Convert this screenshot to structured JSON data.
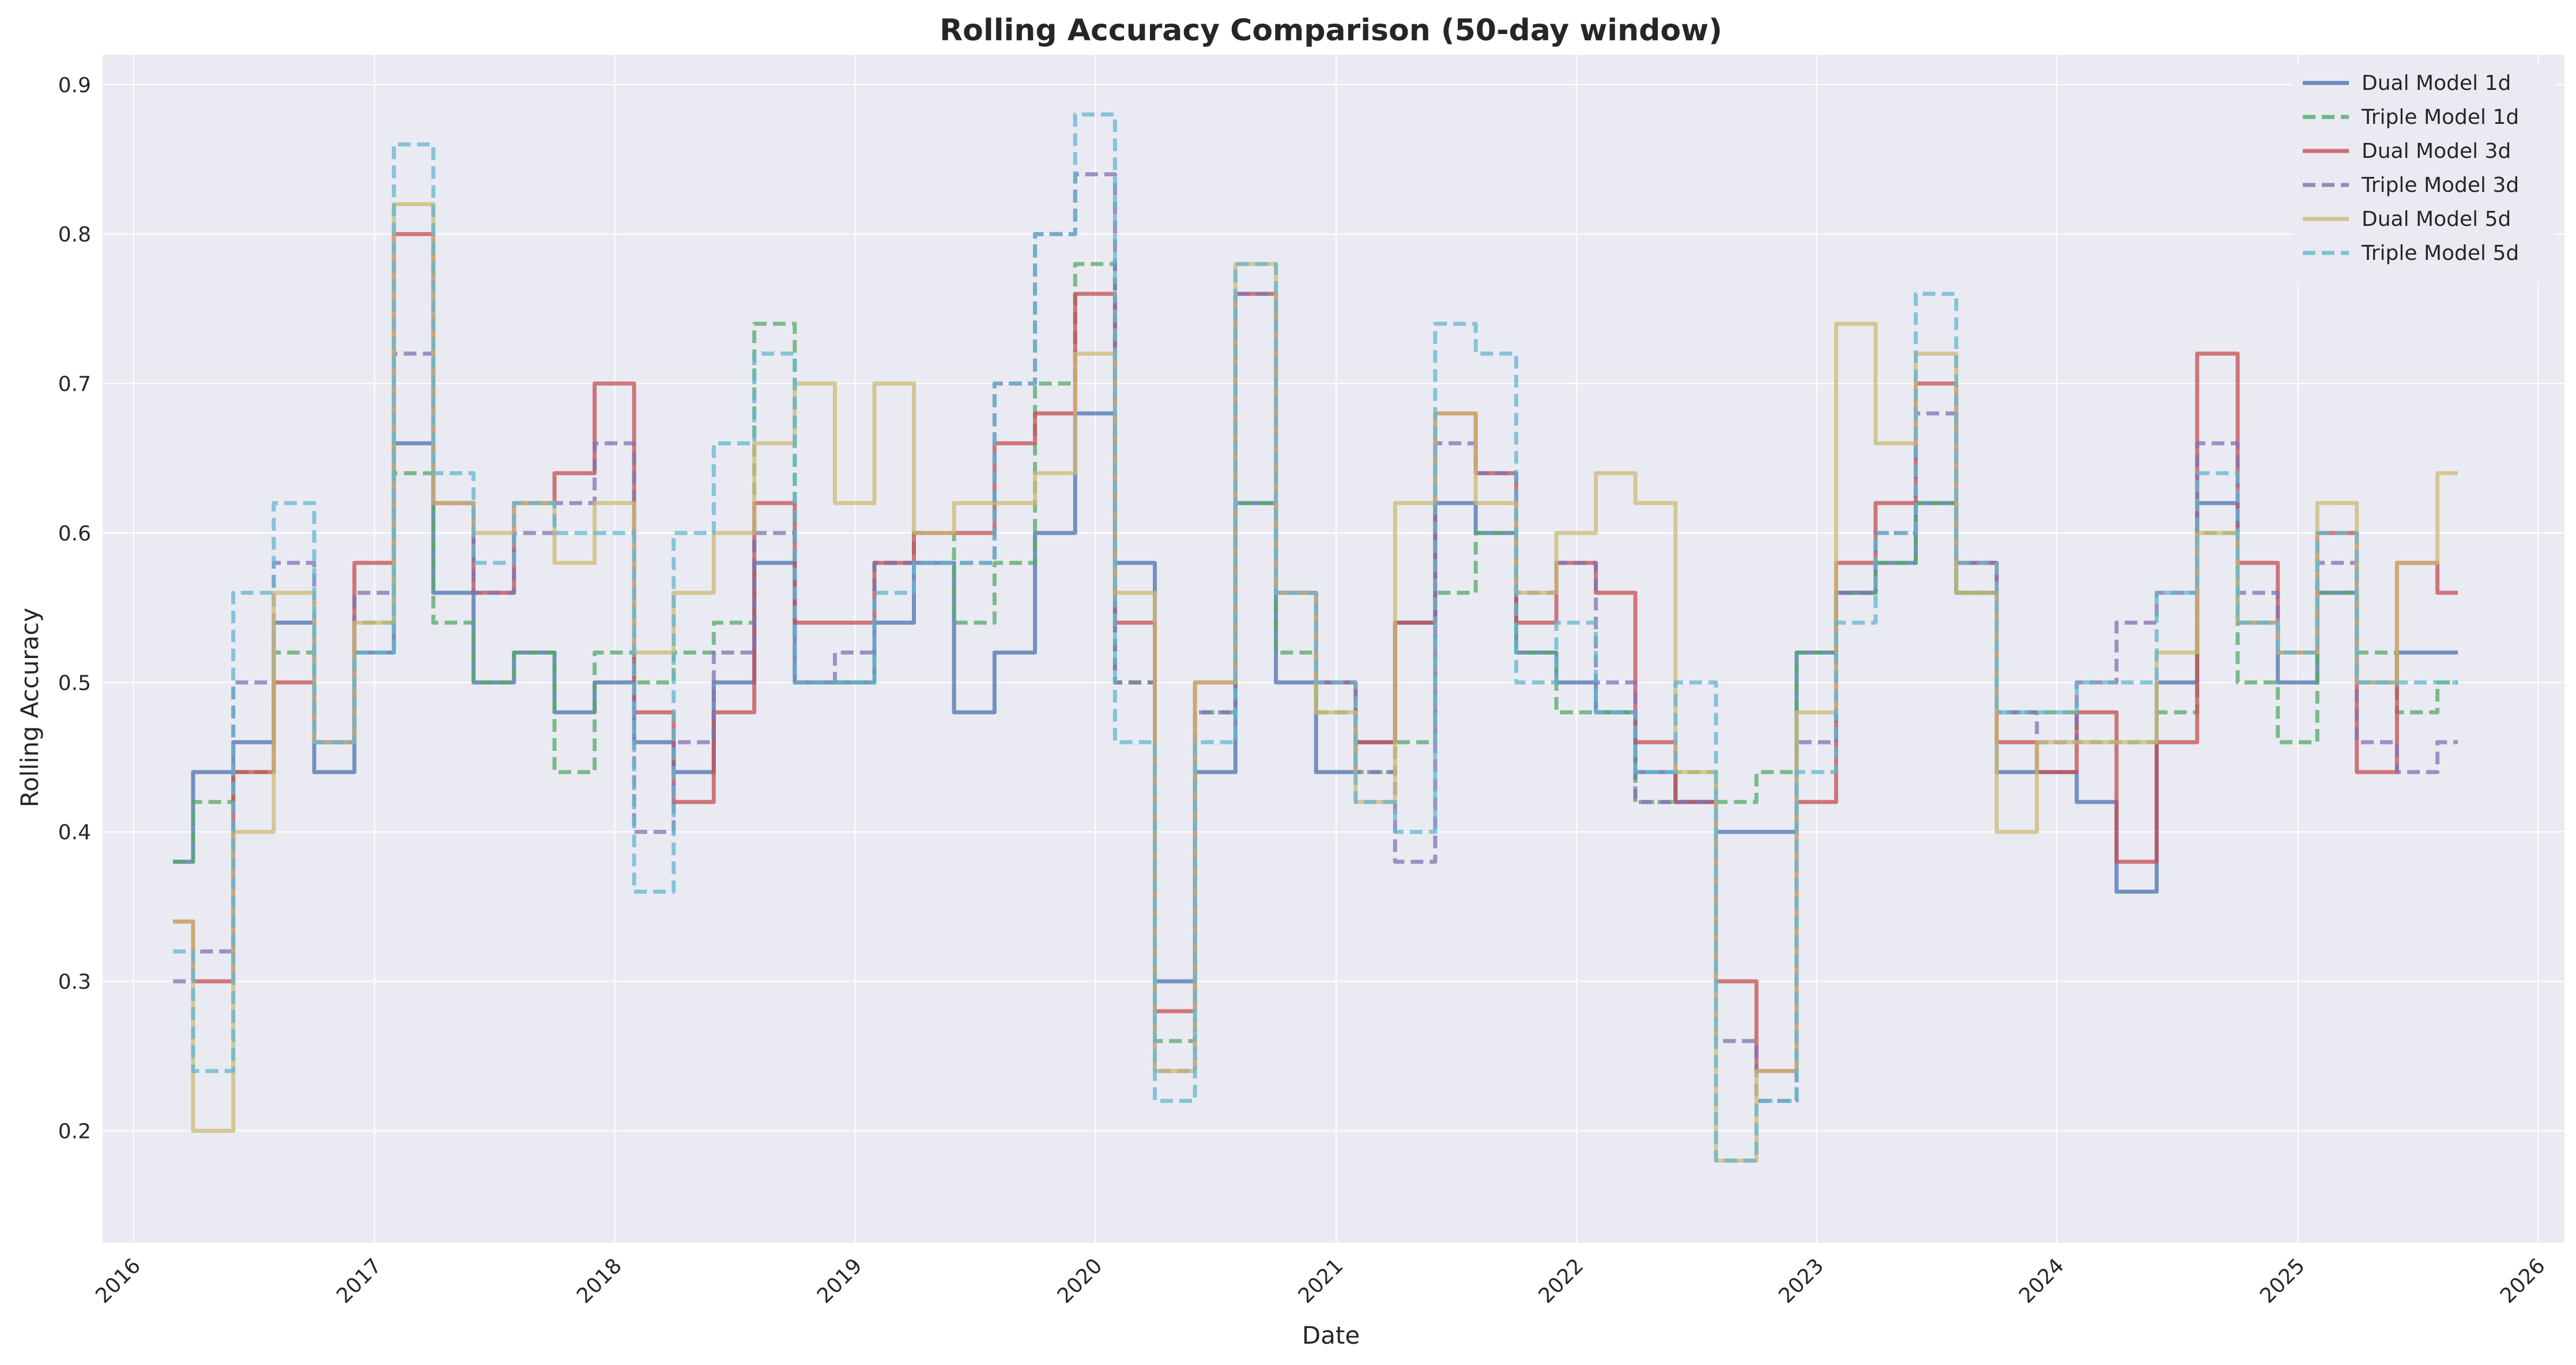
{
  "chart_data": {
    "type": "line",
    "title": "Rolling Accuracy Comparison (50-day window)",
    "xlabel": "Date",
    "ylabel": "Rolling Accuracy",
    "x_ticks": [
      "2016",
      "2017",
      "2018",
      "2019",
      "2020",
      "2021",
      "2022",
      "2023",
      "2024",
      "2025",
      "2026"
    ],
    "x_range": [
      "2015-11-15",
      "2026-02-10"
    ],
    "y_ticks": [
      0.2,
      0.3,
      0.4,
      0.5,
      0.6,
      0.7,
      0.8,
      0.9
    ],
    "ylim": [
      0.125,
      0.92
    ],
    "grid": true,
    "legend_position": "top-right",
    "x": [
      "2016-03-01",
      "2016-05-01",
      "2016-07-01",
      "2016-09-01",
      "2016-11-01",
      "2017-01-01",
      "2017-03-01",
      "2017-05-01",
      "2017-07-01",
      "2017-09-01",
      "2017-11-01",
      "2018-01-01",
      "2018-03-01",
      "2018-05-01",
      "2018-07-01",
      "2018-09-01",
      "2018-11-01",
      "2019-01-01",
      "2019-03-01",
      "2019-05-01",
      "2019-07-01",
      "2019-09-01",
      "2019-11-01",
      "2020-01-01",
      "2020-03-01",
      "2020-05-01",
      "2020-07-01",
      "2020-09-01",
      "2020-11-01",
      "2021-01-01",
      "2021-03-01",
      "2021-05-01",
      "2021-07-01",
      "2021-09-01",
      "2021-11-01",
      "2022-01-01",
      "2022-03-01",
      "2022-05-01",
      "2022-07-01",
      "2022-09-01",
      "2022-11-01",
      "2023-01-01",
      "2023-03-01",
      "2023-05-01",
      "2023-07-01",
      "2023-09-01",
      "2023-11-01",
      "2024-01-01",
      "2024-03-01",
      "2024-05-01",
      "2024-07-01",
      "2024-09-01",
      "2024-11-01",
      "2025-01-01",
      "2025-03-01",
      "2025-05-01",
      "2025-07-01",
      "2025-09-01"
    ],
    "series": [
      {
        "name": "Dual Model 1d",
        "color": "#4c72b0",
        "dash": "solid",
        "values": [
          0.38,
          0.44,
          0.46,
          0.54,
          0.44,
          0.52,
          0.66,
          0.56,
          0.5,
          0.52,
          0.48,
          0.5,
          0.46,
          0.44,
          0.5,
          0.58,
          0.5,
          0.5,
          0.54,
          0.58,
          0.48,
          0.52,
          0.6,
          0.68,
          0.58,
          0.3,
          0.44,
          0.62,
          0.5,
          0.44,
          0.46,
          0.54,
          0.62,
          0.6,
          0.52,
          0.5,
          0.48,
          0.44,
          0.42,
          0.4,
          0.4,
          0.52,
          0.56,
          0.58,
          0.62,
          0.56,
          0.44,
          0.44,
          0.42,
          0.36,
          0.5,
          0.62,
          0.54,
          0.5,
          0.56,
          0.5,
          0.52,
          0.52
        ]
      },
      {
        "name": "Triple Model 1d",
        "color": "#55a868",
        "dash": "dashed",
        "values": [
          0.38,
          0.42,
          0.44,
          0.52,
          0.46,
          0.54,
          0.64,
          0.54,
          0.5,
          0.52,
          0.44,
          0.52,
          0.5,
          0.52,
          0.54,
          0.74,
          0.5,
          0.5,
          0.58,
          0.6,
          0.54,
          0.58,
          0.7,
          0.78,
          0.5,
          0.26,
          0.48,
          0.62,
          0.52,
          0.48,
          0.44,
          0.46,
          0.56,
          0.6,
          0.52,
          0.48,
          0.48,
          0.42,
          0.44,
          0.42,
          0.44,
          0.52,
          0.56,
          0.58,
          0.62,
          0.56,
          0.48,
          0.48,
          0.46,
          0.46,
          0.48,
          0.6,
          0.5,
          0.46,
          0.56,
          0.52,
          0.48,
          0.5
        ]
      },
      {
        "name": "Dual Model 3d",
        "color": "#c44e52",
        "dash": "solid",
        "values": [
          0.34,
          0.3,
          0.44,
          0.5,
          0.46,
          0.58,
          0.8,
          0.62,
          0.56,
          0.62,
          0.64,
          0.7,
          0.48,
          0.42,
          0.48,
          0.62,
          0.54,
          0.54,
          0.58,
          0.6,
          0.6,
          0.66,
          0.68,
          0.76,
          0.54,
          0.28,
          0.5,
          0.76,
          0.56,
          0.5,
          0.46,
          0.54,
          0.68,
          0.64,
          0.54,
          0.58,
          0.56,
          0.46,
          0.42,
          0.3,
          0.24,
          0.42,
          0.58,
          0.62,
          0.7,
          0.58,
          0.46,
          0.44,
          0.48,
          0.38,
          0.46,
          0.72,
          0.58,
          0.52,
          0.6,
          0.44,
          0.58,
          0.56
        ]
      },
      {
        "name": "Triple Model 3d",
        "color": "#8172b2",
        "dash": "dashed",
        "values": [
          0.3,
          0.32,
          0.5,
          0.58,
          0.46,
          0.56,
          0.72,
          0.62,
          0.56,
          0.6,
          0.62,
          0.66,
          0.4,
          0.46,
          0.52,
          0.6,
          0.5,
          0.52,
          0.58,
          0.58,
          0.58,
          0.7,
          0.8,
          0.84,
          0.5,
          0.24,
          0.48,
          0.76,
          0.56,
          0.5,
          0.44,
          0.38,
          0.66,
          0.64,
          0.56,
          0.58,
          0.5,
          0.42,
          0.42,
          0.26,
          0.22,
          0.46,
          0.56,
          0.6,
          0.68,
          0.58,
          0.48,
          0.46,
          0.5,
          0.54,
          0.56,
          0.66,
          0.56,
          0.52,
          0.58,
          0.46,
          0.44,
          0.46
        ]
      },
      {
        "name": "Dual Model 5d",
        "color": "#ccb974",
        "dash": "solid",
        "values": [
          0.34,
          0.2,
          0.4,
          0.56,
          0.46,
          0.54,
          0.82,
          0.62,
          0.6,
          0.62,
          0.58,
          0.62,
          0.52,
          0.56,
          0.6,
          0.66,
          0.7,
          0.62,
          0.7,
          0.6,
          0.62,
          0.62,
          0.64,
          0.72,
          0.56,
          0.24,
          0.5,
          0.78,
          0.56,
          0.48,
          0.42,
          0.62,
          0.68,
          0.62,
          0.56,
          0.6,
          0.64,
          0.62,
          0.44,
          0.18,
          0.24,
          0.48,
          0.74,
          0.66,
          0.72,
          0.56,
          0.4,
          0.46,
          0.46,
          0.46,
          0.52,
          0.6,
          0.54,
          0.52,
          0.62,
          0.5,
          0.58,
          0.64
        ]
      },
      {
        "name": "Triple Model 5d",
        "color": "#64b5cd",
        "dash": "dashed",
        "values": [
          0.32,
          0.24,
          0.56,
          0.62,
          0.46,
          0.52,
          0.86,
          0.64,
          0.58,
          0.62,
          0.6,
          0.6,
          0.36,
          0.6,
          0.66,
          0.72,
          0.5,
          0.5,
          0.56,
          0.58,
          0.58,
          0.7,
          0.8,
          0.88,
          0.46,
          0.22,
          0.46,
          0.78,
          0.56,
          0.5,
          0.42,
          0.4,
          0.74,
          0.72,
          0.5,
          0.54,
          0.48,
          0.44,
          0.5,
          0.18,
          0.22,
          0.44,
          0.54,
          0.6,
          0.76,
          0.58,
          0.48,
          0.48,
          0.5,
          0.5,
          0.56,
          0.64,
          0.54,
          0.52,
          0.6,
          0.5,
          0.5,
          0.5
        ]
      }
    ]
  }
}
